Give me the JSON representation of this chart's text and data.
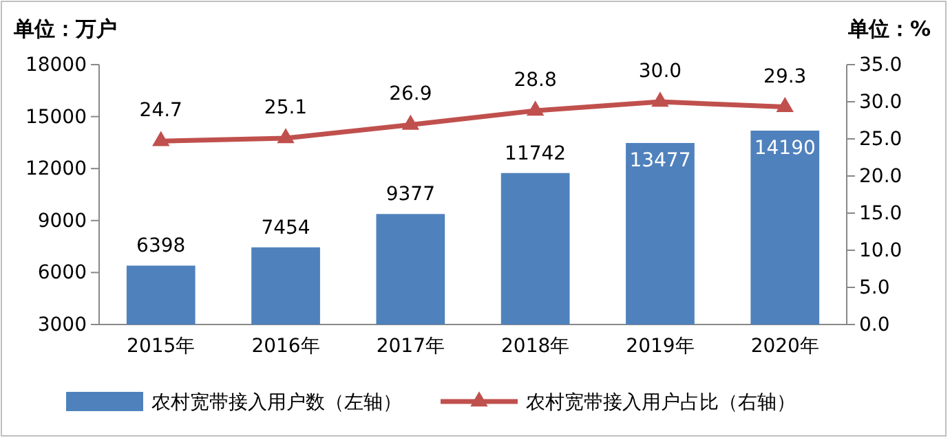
{
  "chart_data": {
    "type": "bar",
    "ylabel": "单位：万户",
    "y2label": "单位：%",
    "categories": [
      "2015年",
      "2016年",
      "2017年",
      "2018年",
      "2019年",
      "2020年"
    ],
    "series": [
      {
        "name": "农村宽带接入用户数（左轴）",
        "color": "#4f81bd",
        "values": [
          6398,
          7454,
          9377,
          11742,
          13477,
          14190
        ]
      },
      {
        "name": "农村宽带接入用户占比（右轴）",
        "type": "line",
        "axis": "y2",
        "color": "#c0504d",
        "marker": "triangle",
        "values": [
          24.7,
          25.1,
          26.9,
          28.8,
          30.0,
          29.3
        ],
        "value_labels": [
          "24.7",
          "25.1",
          "26.9",
          "28.8",
          "30.0",
          "29.3"
        ]
      }
    ],
    "ylim": [
      3000,
      18000
    ],
    "yticks": [
      3000,
      6000,
      9000,
      12000,
      15000,
      18000
    ],
    "y2lim": [
      0,
      35
    ],
    "y2ticks": [
      {
        "value": 0,
        "label": "0.0"
      },
      {
        "value": 5,
        "label": "5.0"
      },
      {
        "value": 10,
        "label": "10.0"
      },
      {
        "value": 15,
        "label": "15.0"
      },
      {
        "value": 20,
        "label": "20.0"
      },
      {
        "value": 25,
        "label": "25.0"
      },
      {
        "value": 30,
        "label": "30.0"
      },
      {
        "value": 35,
        "label": "35.0"
      }
    ],
    "data_labels": true,
    "grid": false,
    "legend": "bottom"
  }
}
